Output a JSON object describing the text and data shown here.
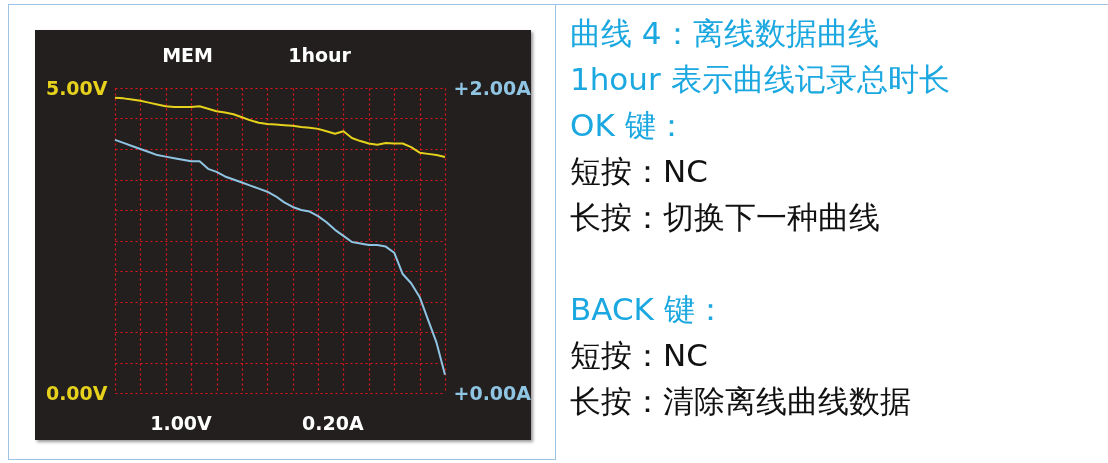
{
  "chart_data": [
    {
      "type": "line",
      "annotations": [
        "MEM",
        "1hour",
        "1.00V",
        "0.20A"
      ],
      "categories": [
        null,
        null,
        null,
        null,
        null,
        null,
        null,
        null,
        null,
        null,
        null,
        null,
        null,
        null,
        null,
        null,
        null,
        null,
        null,
        null,
        null,
        null,
        null,
        null,
        null,
        null,
        null,
        null,
        null,
        null,
        null,
        null,
        null,
        null,
        null,
        null,
        null,
        null,
        null,
        null
      ],
      "ylim": [
        0,
        5
      ],
      "yticks": [
        {
          "value": 0,
          "label": "0.00V"
        },
        {
          "value": 0.5,
          "label": null
        },
        {
          "value": 1,
          "label": null
        },
        {
          "value": 1.5,
          "label": null
        },
        {
          "value": 2,
          "label": null
        },
        {
          "value": 2.5,
          "label": null
        },
        {
          "value": 3,
          "label": null
        },
        {
          "value": 3.5,
          "label": null
        },
        {
          "value": 4,
          "label": null
        },
        {
          "value": 4.5,
          "label": null
        },
        {
          "value": 5,
          "label": "5.00V"
        }
      ],
      "y2lim": [
        0,
        2
      ],
      "y2ticks": [
        {
          "value": 0,
          "label": "+0.00A"
        },
        {
          "value": 2,
          "label": "+2.00A"
        }
      ],
      "grid": true,
      "series": [
        {
          "color": "#e6d21c",
          "values": [
            4.84,
            4.83,
            4.81,
            4.79,
            4.76,
            4.73,
            4.7,
            4.69,
            4.69,
            4.69,
            4.7,
            4.66,
            4.62,
            4.6,
            4.57,
            4.52,
            4.47,
            4.43,
            4.41,
            4.4,
            4.39,
            4.38,
            4.36,
            4.35,
            4.33,
            4.29,
            4.25,
            4.29,
            4.18,
            4.13,
            4.09,
            4.07,
            4.1,
            4.09,
            4.09,
            4.03,
            3.94,
            3.92,
            3.9,
            3.87
          ]
        },
        {
          "color": "#8fc4e2",
          "axis": "y2",
          "values": [
            1.66,
            1.64,
            1.62,
            1.6,
            1.58,
            1.56,
            1.55,
            1.54,
            1.53,
            1.52,
            1.52,
            1.47,
            1.45,
            1.42,
            1.4,
            1.38,
            1.36,
            1.34,
            1.32,
            1.29,
            1.25,
            1.22,
            1.2,
            1.19,
            1.16,
            1.12,
            1.07,
            1.03,
            0.99,
            0.98,
            0.97,
            0.97,
            0.96,
            0.92,
            0.78,
            0.72,
            0.63,
            0.48,
            0.33,
            0.12
          ]
        }
      ]
    },
    {
      "type": "other",
      "title": "曲线 4：离线数据曲线",
      "subtitle": "1hour 表示曲线记录总时长",
      "annotations": [
        "OK 键：",
        "短按：NC",
        "长按：切换下一种曲线",
        "BACK 键：",
        "短按：NC",
        "长按：清除离线曲线数据"
      ]
    }
  ]
}
